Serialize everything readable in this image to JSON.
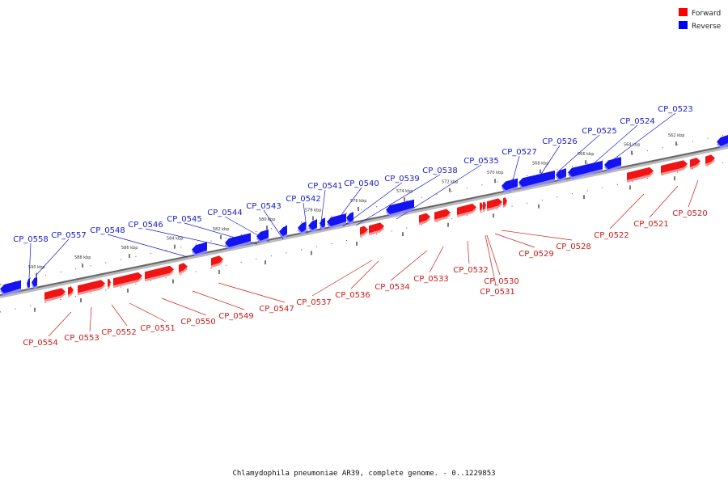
{
  "legend": {
    "items": [
      {
        "label": "Forward",
        "color": "#ff0000"
      },
      {
        "label": "Reverse",
        "color": "#0000ff"
      }
    ]
  },
  "caption": "Chlamydophila pneumoniae AR39, complete genome. - 0..1229853",
  "ticks": [
    "590 kbp",
    "588 kbp",
    "586 kbp",
    "584 kbp",
    "582 kbp",
    "580 kbp",
    "578 kbp",
    "576 kbp",
    "574 kbp",
    "572 kbp",
    "570 kbp",
    "568 kbp",
    "566 kbp",
    "564 kbp",
    "562 kbp"
  ],
  "reverse_genes": [
    "CP_0558",
    "CP_0557",
    "CP_0548",
    "CP_0546",
    "CP_0545",
    "CP_0544",
    "CP_0543",
    "CP_0542",
    "CP_0541",
    "CP_0540",
    "CP_0539",
    "CP_0538",
    "CP_0535",
    "CP_0527",
    "CP_0526",
    "CP_0525",
    "CP_0524",
    "CP_0523"
  ],
  "forward_genes": [
    "CP_0554",
    "CP_0553",
    "CP_0552",
    "CP_0551",
    "CP_0550",
    "CP_0549",
    "CP_0547",
    "CP_0537",
    "CP_0536",
    "CP_0534",
    "CP_0533",
    "CP_0532",
    "CP_0530",
    "CP_0531",
    "CP_0529",
    "CP_0528",
    "CP_0522",
    "CP_0521",
    "CP_0520"
  ]
}
